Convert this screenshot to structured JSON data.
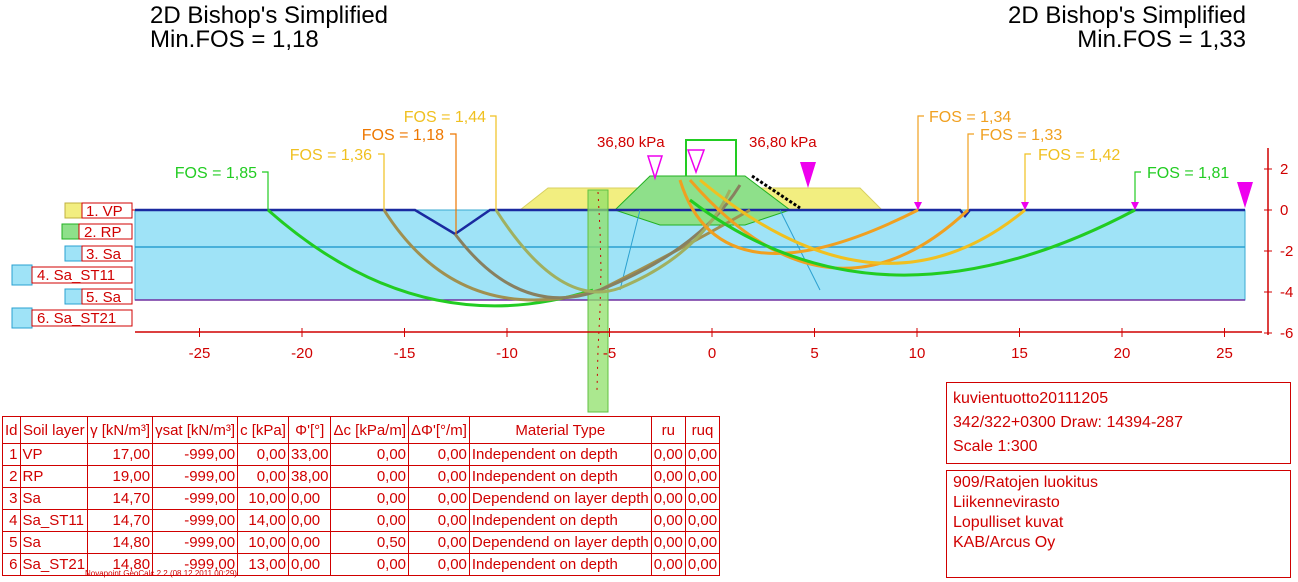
{
  "titles": {
    "left": {
      "method": "2D Bishop's Simplified",
      "fos": "Min.FOS = 1,18"
    },
    "right": {
      "method": "2D Bishop's Simplified",
      "fos": "Min.FOS = 1,33"
    }
  },
  "fos_labels": [
    {
      "text": "FOS = 1,85",
      "color": "#22cc22"
    },
    {
      "text": "FOS = 1,36",
      "color": "#f0c020"
    },
    {
      "text": "FOS = 1,18",
      "color": "#ee7700"
    },
    {
      "text": "FOS = 1,44",
      "color": "#f0c020"
    },
    {
      "text": "FOS = 1,34",
      "color": "#f0a020"
    },
    {
      "text": "FOS = 1,33",
      "color": "#f0a020"
    },
    {
      "text": "FOS = 1,42",
      "color": "#f0c020"
    },
    {
      "text": "FOS = 1,81",
      "color": "#22cc22"
    }
  ],
  "loads": [
    "36,80 kPa",
    "36,80 kPa"
  ],
  "layer_labels": [
    "1. VP",
    "2. RP",
    "3. Sa",
    "4. Sa_ST11",
    "5. Sa",
    "6. Sa_ST21"
  ],
  "x_ticks": [
    "-25",
    "-20",
    "-15",
    "-10",
    "-5",
    "0",
    "5",
    "10",
    "15",
    "20",
    "25"
  ],
  "y_ticks": [
    "2",
    "0",
    "-2",
    "-4",
    "-6"
  ],
  "table": {
    "headers": [
      "Id",
      "Soil layer",
      "γ [kN/m³]",
      "γsat [kN/m³]",
      "c [kPa]",
      "Φ'[°]",
      "Δc [kPa/m]",
      "ΔΦ'[°/m]",
      "Material Type",
      "ru",
      "ruq"
    ],
    "rows": [
      [
        "1",
        "VP",
        "17,00",
        "-999,00",
        "0,00",
        "33,00",
        "0,00",
        "0,00",
        "Independent on depth",
        "0,00",
        "0,00"
      ],
      [
        "2",
        "RP",
        "19,00",
        "-999,00",
        "0,00",
        "38,00",
        "0,00",
        "0,00",
        "Independent on depth",
        "0,00",
        "0,00"
      ],
      [
        "3",
        "Sa",
        "14,70",
        "-999,00",
        "10,00",
        "0,00",
        "0,00",
        "0,00",
        "Dependend on layer depth",
        "0,00",
        "0,00"
      ],
      [
        "4",
        "Sa_ST11",
        "14,70",
        "-999,00",
        "14,00",
        "0,00",
        "0,00",
        "0,00",
        "Independent on depth",
        "0,00",
        "0,00"
      ],
      [
        "5",
        "Sa",
        "14,80",
        "-999,00",
        "10,00",
        "0,00",
        "0,50",
        "0,00",
        "Dependend on layer depth",
        "0,00",
        "0,00"
      ],
      [
        "6",
        "Sa_ST21",
        "14,80",
        "-999,00",
        "13,00",
        "0,00",
        "0,00",
        "0,00",
        "Independent on depth",
        "0,00",
        "0,00"
      ]
    ]
  },
  "info": {
    "project": "kuvientuotto20111205",
    "drawing": "342/322+0300  Draw: 14394-287",
    "scale": "Scale  1:300"
  },
  "org": {
    "line1": "909/Ratojen luokitus",
    "line2": "Liikennevirasto",
    "line3": "Lopulliset kuvat",
    "line4": "KAB/Arcus Oy"
  },
  "footer": "Novapoint GeoCalc 2.2  (08.12.2011 00:29)"
}
